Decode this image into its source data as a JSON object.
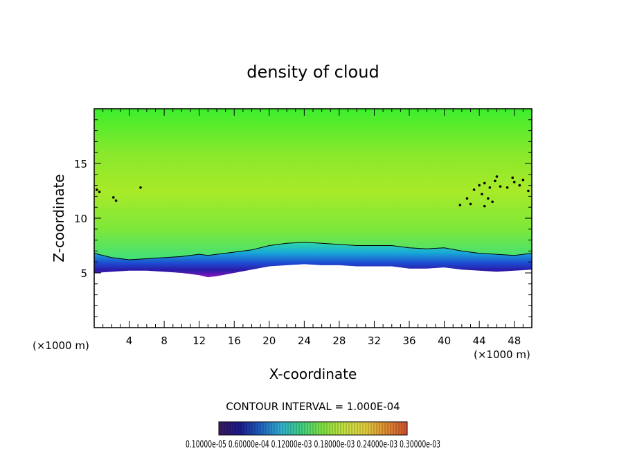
{
  "chart_data": {
    "type": "heatmap",
    "title": "density of cloud",
    "xlabel": "X-coordinate",
    "ylabel": "Z-coordinate",
    "x_unit_label": "(×1000 m)",
    "y_unit_label": "(×1000 m)",
    "xlim": [
      0,
      50
    ],
    "ylim": [
      0,
      20
    ],
    "x_ticks": [
      4,
      8,
      12,
      16,
      20,
      24,
      28,
      32,
      36,
      40,
      44,
      48
    ],
    "y_ticks": [
      5,
      10,
      15
    ],
    "x_tick_labels": [
      "4",
      "8",
      "12",
      "16",
      "20",
      "24",
      "28",
      "32",
      "36",
      "40",
      "44",
      "48"
    ],
    "y_tick_labels": [
      "5",
      "10",
      "15"
    ],
    "cloud_base_profile": {
      "x": [
        0,
        2,
        4,
        6,
        8,
        10,
        12,
        13,
        14,
        16,
        18,
        20,
        22,
        24,
        26,
        28,
        30,
        32,
        34,
        36,
        38,
        40,
        42,
        44,
        46,
        48,
        50
      ],
      "base_z": [
        5.0,
        5.1,
        5.2,
        5.2,
        5.1,
        5.0,
        4.8,
        4.6,
        4.7,
        5.0,
        5.3,
        5.6,
        5.7,
        5.8,
        5.7,
        5.7,
        5.6,
        5.6,
        5.6,
        5.4,
        5.4,
        5.5,
        5.3,
        5.2,
        5.1,
        5.2,
        5.3
      ],
      "edge_contour_z": [
        6.8,
        6.4,
        6.2,
        6.3,
        6.4,
        6.5,
        6.7,
        6.6,
        6.7,
        6.9,
        7.1,
        7.5,
        7.7,
        7.8,
        7.7,
        7.6,
        7.5,
        7.5,
        7.5,
        7.3,
        7.2,
        7.3,
        7.0,
        6.8,
        6.7,
        6.6,
        6.8
      ]
    },
    "colorbar": {
      "label": "CONTOUR INTERVAL = 1.000E-04",
      "tick_labels_text": "0.10000e-05 0.60000e-04 0.12000e-03 0.18000e-03 0.24000e-03 0.30000e-03",
      "colors": [
        "#3a1a5e",
        "#1a1a8c",
        "#2060c0",
        "#30b0d0",
        "#40d080",
        "#80e040",
        "#c0e040",
        "#e0d040",
        "#e09030",
        "#d05030"
      ]
    },
    "colors": {
      "upper": "#33ee33",
      "mid": "#aaee22",
      "cyan": "#22ccbb",
      "blue": "#2244cc",
      "purple": "#7711aa"
    }
  }
}
